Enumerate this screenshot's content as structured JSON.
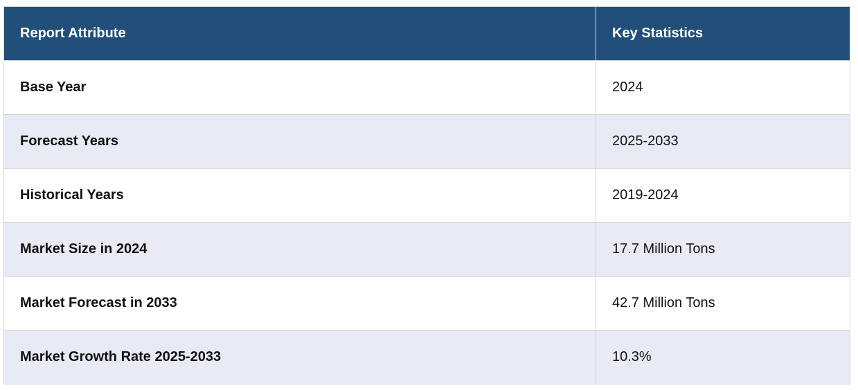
{
  "table": {
    "headers": [
      "Report Attribute",
      "Key Statistics"
    ],
    "rows": [
      {
        "attribute": "Base Year",
        "value": "2024"
      },
      {
        "attribute": "Forecast Years",
        "value": "2025-2033"
      },
      {
        "attribute": "Historical Years",
        "value": "2019-2024"
      },
      {
        "attribute": "Market Size in 2024",
        "value": "17.7 Million Tons"
      },
      {
        "attribute": "Market Forecast in 2033",
        "value": "42.7 Million Tons"
      },
      {
        "attribute": "Market Growth Rate 2025-2033",
        "value": "10.3%"
      }
    ]
  },
  "colors": {
    "header_bg": "#214f7a",
    "header_text": "#ffffff",
    "alt_row_bg": "#e8eaf5",
    "border": "#d6d6d6"
  }
}
